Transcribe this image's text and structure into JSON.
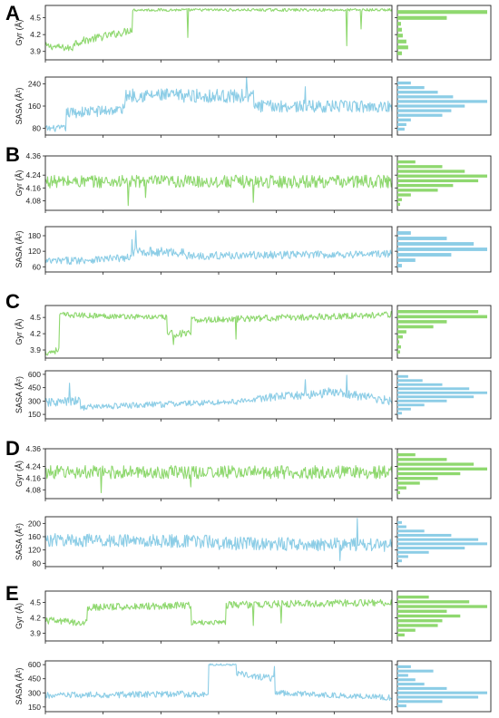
{
  "figure": {
    "colors": {
      "gyr": "#8fd86f",
      "sasa": "#8ccde6",
      "axis": "#222222"
    }
  },
  "chart_data": [
    {
      "panel": "A",
      "type": "line",
      "ylabel": "Gyr (Å)",
      "yticks": [
        "3.9",
        "4.2",
        "4.5"
      ],
      "ylim": [
        3.75,
        4.72
      ],
      "segments": [
        {
          "x0": 0,
          "x1": 0.08,
          "y0": 4.0,
          "y1": 3.95,
          "noise": 0.06
        },
        {
          "x0": 0.08,
          "x1": 0.23,
          "y0": 4.05,
          "y1": 4.25,
          "noise": 0.07
        },
        {
          "x0": 0.23,
          "x1": 0.25,
          "y0": 4.25,
          "y1": 4.3,
          "noise": 0.07
        },
        {
          "x0": 0.25,
          "x1": 1.0,
          "y0": 4.64,
          "y1": 4.64,
          "noise": 0.025
        }
      ],
      "spikes": [
        {
          "x": 0.41,
          "y": 4.15
        },
        {
          "x": 0.87,
          "y": 4.0
        },
        {
          "x": 0.91,
          "y": 4.3
        }
      ],
      "hist": [
        0.05,
        0.12,
        0.1,
        0.06,
        0.05,
        0.04,
        0.55,
        1.0
      ]
    },
    {
      "panel": "A",
      "type": "line",
      "ylabel": "SASA (Å²)",
      "yticks": [
        "80",
        "160",
        "240"
      ],
      "ylim": [
        55,
        265
      ],
      "segments": [
        {
          "x0": 0,
          "x1": 0.06,
          "y0": 78,
          "y1": 80,
          "noise": 12
        },
        {
          "x0": 0.06,
          "x1": 0.23,
          "y0": 135,
          "y1": 148,
          "noise": 20
        },
        {
          "x0": 0.23,
          "x1": 0.6,
          "y0": 200,
          "y1": 195,
          "noise": 25
        },
        {
          "x0": 0.6,
          "x1": 1.0,
          "y0": 160,
          "y1": 158,
          "noise": 22
        }
      ],
      "spikes": [
        {
          "x": 0.58,
          "y": 265
        },
        {
          "x": 0.75,
          "y": 230
        }
      ],
      "hist": [
        0.08,
        0.1,
        0.15,
        0.5,
        0.6,
        0.75,
        1.0,
        0.62,
        0.45,
        0.3,
        0.15
      ]
    },
    {
      "panel": "B",
      "type": "line",
      "ylabel": "Gyr (Å)",
      "yticks": [
        "4.08",
        "4.16",
        "4.24",
        "4.36"
      ],
      "ylim": [
        4.02,
        4.36
      ],
      "segments": [
        {
          "x0": 0,
          "x1": 1.0,
          "y0": 4.2,
          "y1": 4.2,
          "noise": 0.04
        }
      ],
      "spikes": [
        {
          "x": 0.24,
          "y": 4.05
        },
        {
          "x": 0.29,
          "y": 4.1
        },
        {
          "x": 0.6,
          "y": 4.07
        }
      ],
      "hist": [
        0.03,
        0.05,
        0.15,
        0.45,
        0.62,
        0.9,
        1.0,
        0.75,
        0.5,
        0.2
      ]
    },
    {
      "panel": "B",
      "type": "line",
      "ylabel": "SASA (Å²)",
      "yticks": [
        "60",
        "120",
        "180"
      ],
      "ylim": [
        40,
        215
      ],
      "segments": [
        {
          "x0": 0,
          "x1": 0.25,
          "y0": 80,
          "y1": 95,
          "noise": 15
        },
        {
          "x0": 0.25,
          "x1": 0.4,
          "y0": 120,
          "y1": 115,
          "noise": 18
        },
        {
          "x0": 0.4,
          "x1": 1.0,
          "y0": 102,
          "y1": 110,
          "noise": 15
        }
      ],
      "spikes": [
        {
          "x": 0.26,
          "y": 200
        },
        {
          "x": 0.25,
          "y": 165
        }
      ],
      "hist": [
        0.05,
        0.2,
        0.6,
        1.0,
        0.85,
        0.55,
        0.15
      ]
    },
    {
      "panel": "C",
      "type": "line",
      "ylabel": "Gyr (Å)",
      "yticks": [
        "3.9",
        "4.2",
        "4.5"
      ],
      "ylim": [
        3.75,
        4.72
      ],
      "segments": [
        {
          "x0": 0,
          "x1": 0.04,
          "y0": 3.85,
          "y1": 3.9,
          "noise": 0.06
        },
        {
          "x0": 0.04,
          "x1": 0.35,
          "y0": 4.55,
          "y1": 4.5,
          "noise": 0.05
        },
        {
          "x0": 0.35,
          "x1": 0.42,
          "y0": 4.2,
          "y1": 4.2,
          "noise": 0.07
        },
        {
          "x0": 0.42,
          "x1": 1.0,
          "y0": 4.45,
          "y1": 4.55,
          "noise": 0.06
        }
      ],
      "spikes": [
        {
          "x": 0.37,
          "y": 4.0
        },
        {
          "x": 0.55,
          "y": 4.1
        }
      ],
      "hist": [
        0.03,
        0.04,
        0.02,
        0.06,
        0.1,
        0.4,
        0.55,
        1.0,
        0.9
      ]
    },
    {
      "panel": "C",
      "type": "line",
      "ylabel": "SASA (Å²)",
      "yticks": [
        "150",
        "300",
        "450",
        "600"
      ],
      "ylim": [
        100,
        640
      ],
      "segments": [
        {
          "x0": 0,
          "x1": 0.1,
          "y0": 280,
          "y1": 300,
          "noise": 50
        },
        {
          "x0": 0.1,
          "x1": 0.6,
          "y0": 230,
          "y1": 300,
          "noise": 35
        },
        {
          "x0": 0.6,
          "x1": 0.8,
          "y0": 330,
          "y1": 380,
          "noise": 45
        },
        {
          "x0": 0.8,
          "x1": 1.0,
          "y0": 420,
          "y1": 300,
          "noise": 50
        }
      ],
      "spikes": [
        {
          "x": 0.07,
          "y": 500
        },
        {
          "x": 0.75,
          "y": 540
        },
        {
          "x": 0.87,
          "y": 590
        }
      ],
      "hist": [
        0.05,
        0.15,
        0.3,
        0.55,
        0.85,
        1.0,
        0.8,
        0.5,
        0.28,
        0.12
      ]
    },
    {
      "panel": "D",
      "type": "line",
      "ylabel": "Gyr (Å)",
      "yticks": [
        "4.08",
        "4.16",
        "4.24",
        "4.36"
      ],
      "ylim": [
        4.02,
        4.36
      ],
      "segments": [
        {
          "x0": 0,
          "x1": 1.0,
          "y0": 4.2,
          "y1": 4.2,
          "noise": 0.045
        }
      ],
      "spikes": [
        {
          "x": 0.16,
          "y": 4.06
        },
        {
          "x": 0.42,
          "y": 4.1
        }
      ],
      "hist": [
        0.03,
        0.1,
        0.25,
        0.45,
        0.7,
        1.0,
        0.85,
        0.55,
        0.2
      ]
    },
    {
      "panel": "D",
      "type": "line",
      "ylabel": "SASA (Å²)",
      "yticks": [
        "80",
        "120",
        "160",
        "200"
      ],
      "ylim": [
        70,
        220
      ],
      "segments": [
        {
          "x0": 0,
          "x1": 0.5,
          "y0": 150,
          "y1": 145,
          "noise": 20
        },
        {
          "x0": 0.5,
          "x1": 1.0,
          "y0": 140,
          "y1": 135,
          "noise": 20
        }
      ],
      "spikes": [
        {
          "x": 0.9,
          "y": 215
        },
        {
          "x": 0.85,
          "y": 88
        }
      ],
      "hist": [
        0.05,
        0.12,
        0.35,
        0.75,
        1.0,
        0.9,
        0.6,
        0.3,
        0.1,
        0.05
      ]
    },
    {
      "panel": "E",
      "type": "line",
      "ylabel": "Gyr (Å)",
      "yticks": [
        "3.9",
        "4.2",
        "4.5"
      ],
      "ylim": [
        3.75,
        4.72
      ],
      "segments": [
        {
          "x0": 0,
          "x1": 0.12,
          "y0": 4.15,
          "y1": 4.1,
          "noise": 0.07
        },
        {
          "x0": 0.12,
          "x1": 0.42,
          "y0": 4.4,
          "y1": 4.45,
          "noise": 0.07
        },
        {
          "x0": 0.42,
          "x1": 0.52,
          "y0": 4.1,
          "y1": 4.12,
          "noise": 0.05
        },
        {
          "x0": 0.52,
          "x1": 1.0,
          "y0": 4.45,
          "y1": 4.5,
          "noise": 0.07
        }
      ],
      "spikes": [
        {
          "x": 0.6,
          "y": 4.05
        },
        {
          "x": 0.68,
          "y": 4.1
        }
      ],
      "hist": [
        0.08,
        0.2,
        0.45,
        0.5,
        0.7,
        0.55,
        1.0,
        0.8,
        0.35
      ]
    },
    {
      "panel": "E",
      "type": "line",
      "ylabel": "SASA (Å²)",
      "yticks": [
        "150",
        "300",
        "450",
        "600"
      ],
      "ylim": [
        100,
        640
      ],
      "segments": [
        {
          "x0": 0,
          "x1": 0.4,
          "y0": 270,
          "y1": 290,
          "noise": 35
        },
        {
          "x0": 0.4,
          "x1": 0.47,
          "y0": 280,
          "y1": 290,
          "noise": 30
        },
        {
          "x0": 0.47,
          "x1": 0.55,
          "y0": 600,
          "y1": 600,
          "noise": 10
        },
        {
          "x0": 0.55,
          "x1": 0.66,
          "y0": 510,
          "y1": 450,
          "noise": 35
        },
        {
          "x0": 0.66,
          "x1": 1.0,
          "y0": 300,
          "y1": 250,
          "noise": 30
        }
      ],
      "spikes": [
        {
          "x": 0.66,
          "y": 580
        }
      ],
      "hist": [
        0.1,
        0.5,
        0.9,
        1.0,
        0.55,
        0.3,
        0.2,
        0.12,
        0.4,
        0.15
      ]
    }
  ]
}
